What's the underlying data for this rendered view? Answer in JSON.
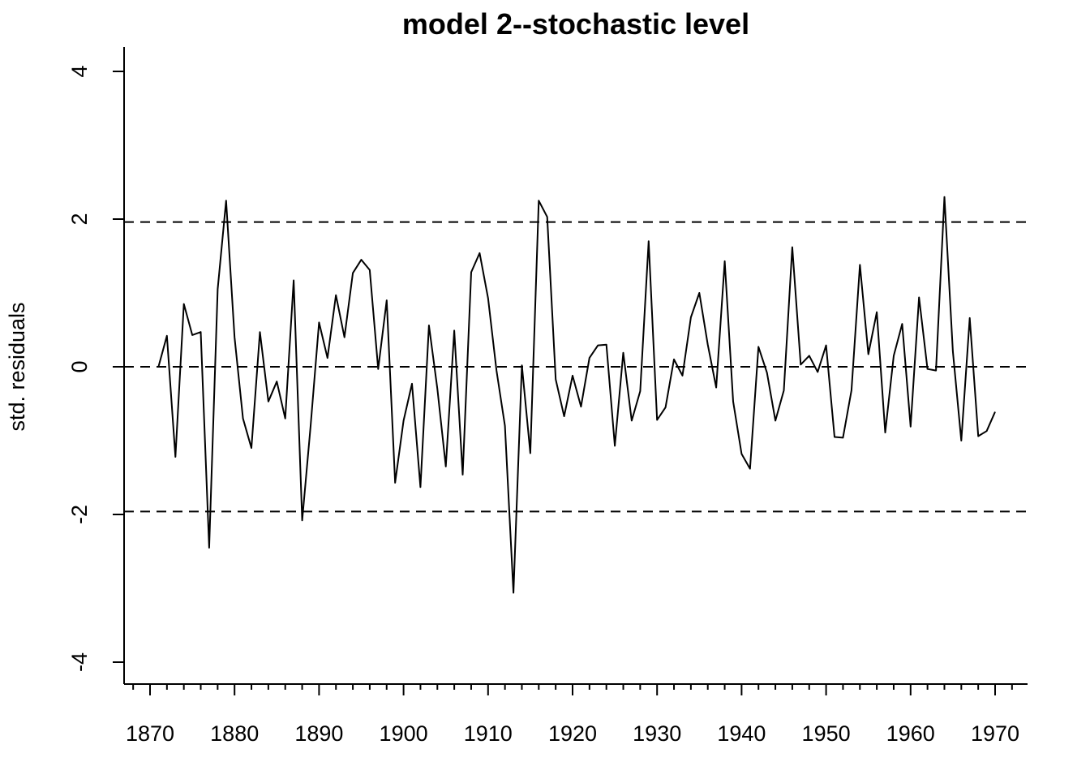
{
  "chart_data": {
    "type": "line",
    "title": "model 2--stochastic level",
    "xlabel": "",
    "ylabel": "std. residuals",
    "xlim": [
      1867,
      1974
    ],
    "ylim": [
      -4.3,
      4.3
    ],
    "x_ticks": [
      1870,
      1880,
      1890,
      1900,
      1910,
      1920,
      1930,
      1940,
      1950,
      1960,
      1970
    ],
    "y_ticks": [
      -4,
      -2,
      0,
      2,
      4
    ],
    "reference_lines": [
      1.96,
      0,
      -1.96
    ],
    "grid": false,
    "series": [
      {
        "x": [
          1871,
          1872,
          1873,
          1874,
          1875,
          1876,
          1877,
          1878,
          1879,
          1880,
          1881,
          1882,
          1883,
          1884,
          1885,
          1886,
          1887,
          1888,
          1889,
          1890,
          1891,
          1892,
          1893,
          1894,
          1895,
          1896,
          1897,
          1898,
          1899,
          1900,
          1901,
          1902,
          1903,
          1904,
          1905,
          1906,
          1907,
          1908,
          1909,
          1910,
          1911,
          1912,
          1913,
          1914,
          1915,
          1916,
          1917,
          1918,
          1919,
          1920,
          1921,
          1922,
          1923,
          1924,
          1925,
          1926,
          1927,
          1928,
          1929,
          1930,
          1931,
          1932,
          1933,
          1934,
          1935,
          1936,
          1937,
          1938,
          1939,
          1940,
          1941,
          1942,
          1943,
          1944,
          1945,
          1946,
          1947,
          1948,
          1949,
          1950,
          1951,
          1952,
          1953,
          1954,
          1955,
          1956,
          1957,
          1958,
          1959,
          1960,
          1961,
          1962,
          1963,
          1964,
          1965,
          1966,
          1967,
          1968,
          1969,
          1970
        ],
        "values": [
          0.0,
          0.42,
          -1.22,
          0.85,
          0.43,
          0.47,
          -2.45,
          1.05,
          2.25,
          0.4,
          -0.7,
          -1.1,
          0.47,
          -0.47,
          -0.2,
          -0.7,
          1.17,
          -2.08,
          -0.8,
          0.6,
          0.12,
          0.97,
          0.4,
          1.27,
          1.45,
          1.31,
          -0.03,
          0.9,
          -1.57,
          -0.73,
          -0.23,
          -1.63,
          0.56,
          -0.3,
          -1.35,
          0.49,
          -1.46,
          1.28,
          1.54,
          0.93,
          -0.05,
          -0.8,
          -3.06,
          0.02,
          -1.17,
          2.25,
          2.03,
          -0.17,
          -0.67,
          -0.12,
          -0.54,
          0.12,
          0.29,
          0.3,
          -1.07,
          0.19,
          -0.73,
          -0.33,
          1.7,
          -0.72,
          -0.55,
          0.1,
          -0.12,
          0.67,
          1.0,
          0.3,
          -0.28,
          1.43,
          -0.47,
          -1.18,
          -1.38,
          0.27,
          -0.08,
          -0.73,
          -0.32,
          1.62,
          0.03,
          0.15,
          -0.07,
          0.29,
          -0.95,
          -0.96,
          -0.32,
          1.38,
          0.17,
          0.74,
          -0.89,
          0.15,
          0.58,
          -0.81,
          0.94,
          -0.03,
          -0.05,
          2.3,
          0.21,
          -1.0,
          0.66,
          -0.94,
          -0.87,
          -0.61
        ]
      }
    ]
  }
}
